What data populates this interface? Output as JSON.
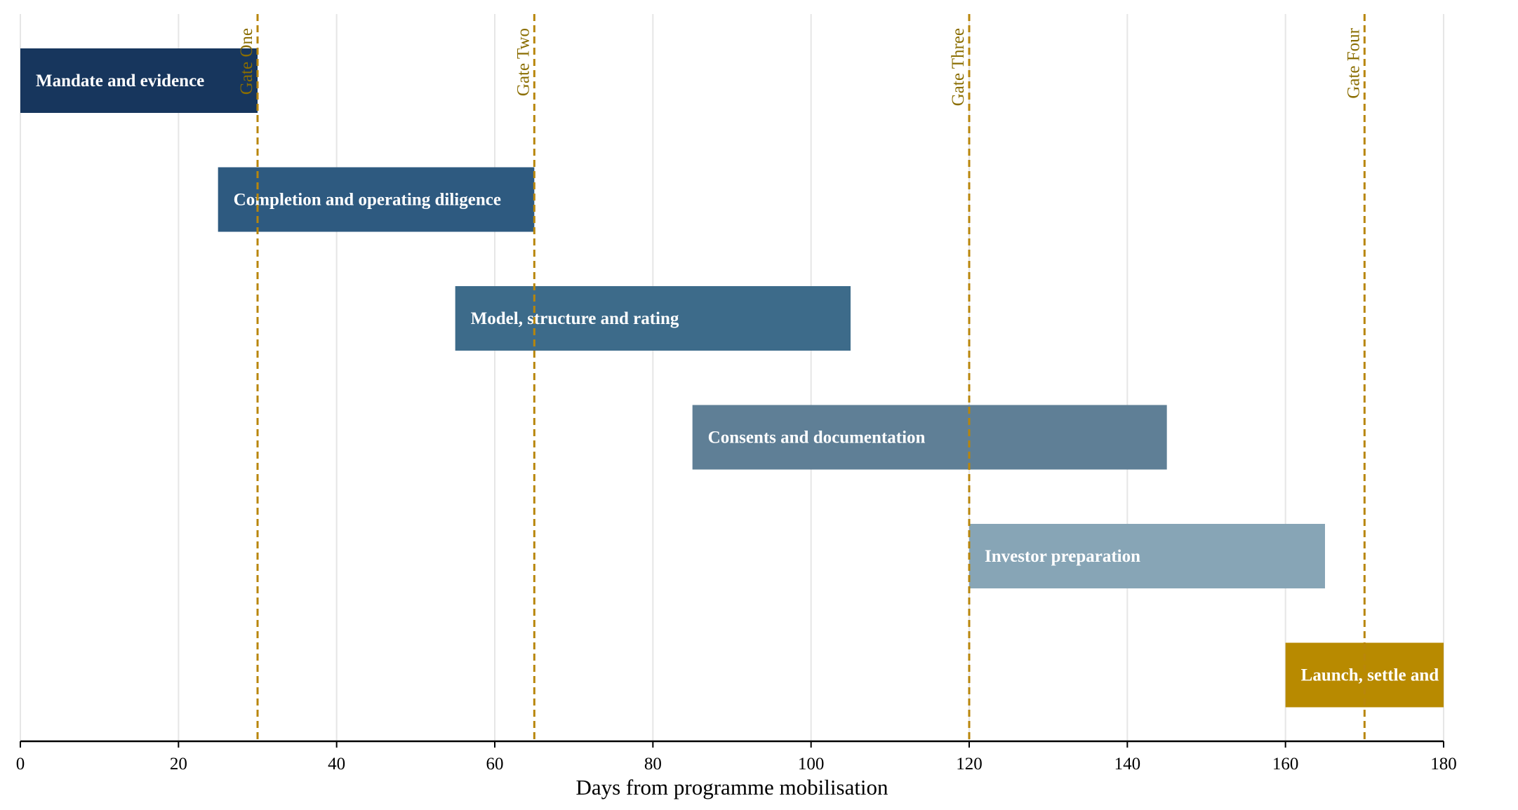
{
  "chart_data": {
    "type": "bar",
    "orientation": "horizontal-gantt",
    "title": "",
    "xlabel": "Days from programme mobilisation",
    "ylabel": "",
    "xlim": [
      0,
      180
    ],
    "x_ticks": [
      0,
      20,
      40,
      60,
      80,
      100,
      120,
      140,
      160,
      180
    ],
    "grid": "vertical",
    "series": [
      {
        "label": "Mandate and evidence",
        "start": 0,
        "end": 30,
        "color": "#17365d"
      },
      {
        "label": "Completion and operating diligence",
        "start": 25,
        "end": 65,
        "color": "#2e5a80"
      },
      {
        "label": "Model, structure and rating",
        "start": 55,
        "end": 105,
        "color": "#3d6b8a"
      },
      {
        "label": "Consents and documentation",
        "start": 85,
        "end": 145,
        "color": "#5f7f96"
      },
      {
        "label": "Investor preparation",
        "start": 120,
        "end": 165,
        "color": "#87a5b6"
      },
      {
        "label": "Launch, settle and",
        "start": 160,
        "end": 180,
        "color": "#b88a00"
      }
    ],
    "gates": [
      {
        "label": "Gate One",
        "x": 30
      },
      {
        "label": "Gate Two",
        "x": 65
      },
      {
        "label": "Gate Three",
        "x": 120
      },
      {
        "label": "Gate Four",
        "x": 170
      }
    ],
    "gate_color": "#b8860b",
    "gate_label_color": "#8a6d00"
  }
}
